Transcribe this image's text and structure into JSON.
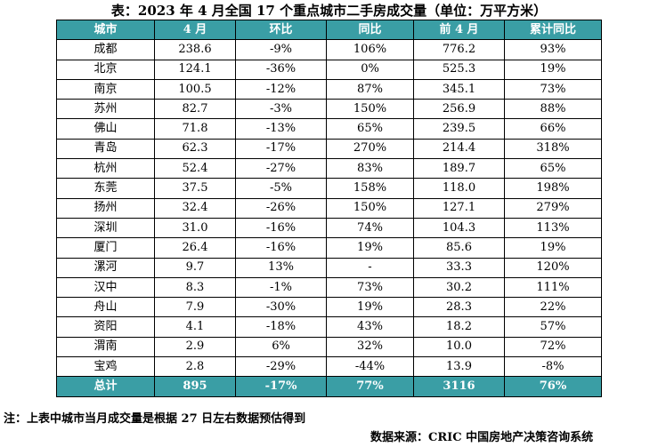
{
  "title": "表：2023 年 4 月全国 17 个重点城市二手房成交量（单位：万平方米）",
  "columns": [
    "城市",
    "4 月",
    "环比",
    "同比",
    "前 4 月",
    "累计同比"
  ],
  "rows": [
    [
      "成都",
      "238.6",
      "-9%",
      "106%",
      "776.2",
      "93%"
    ],
    [
      "北京",
      "124.1",
      "-36%",
      "0%",
      "525.3",
      "19%"
    ],
    [
      "南京",
      "100.5",
      "-12%",
      "87%",
      "345.1",
      "73%"
    ],
    [
      "苏州",
      "82.7",
      "-3%",
      "150%",
      "256.9",
      "88%"
    ],
    [
      "佛山",
      "71.8",
      "-13%",
      "65%",
      "239.5",
      "66%"
    ],
    [
      "青岛",
      "62.3",
      "-17%",
      "270%",
      "214.4",
      "318%"
    ],
    [
      "杭州",
      "52.4",
      "-27%",
      "83%",
      "189.7",
      "65%"
    ],
    [
      "东莞",
      "37.5",
      "-5%",
      "158%",
      "118.0",
      "198%"
    ],
    [
      "扬州",
      "32.4",
      "-26%",
      "150%",
      "127.1",
      "279%"
    ],
    [
      "深圳",
      "31.0",
      "-16%",
      "74%",
      "104.3",
      "113%"
    ],
    [
      "厦门",
      "26.4",
      "-16%",
      "19%",
      "85.6",
      "19%"
    ],
    [
      "漯河",
      "9.7",
      "13%",
      "-",
      "33.3",
      "120%"
    ],
    [
      "汉中",
      "8.3",
      "-1%",
      "73%",
      "30.2",
      "111%"
    ],
    [
      "舟山",
      "7.9",
      "-30%",
      "19%",
      "28.3",
      "22%"
    ],
    [
      "资阳",
      "4.1",
      "-18%",
      "43%",
      "18.2",
      "57%"
    ],
    [
      "渭南",
      "2.9",
      "6%",
      "32%",
      "10.0",
      "72%"
    ],
    [
      "宝鸡",
      "2.8",
      "-29%",
      "-44%",
      "13.9",
      "-8%"
    ]
  ],
  "total": [
    "总计",
    "895",
    "-17%",
    "77%",
    "3116",
    "76%"
  ],
  "note": "注：上表中城市当月成交量是根据 27 日左右数据预估得到",
  "source": "数据来源：CRIC 中国房地产决策咨询系统",
  "colors": {
    "header_bg": "#3a9ea5",
    "header_text": "#ffffff"
  }
}
